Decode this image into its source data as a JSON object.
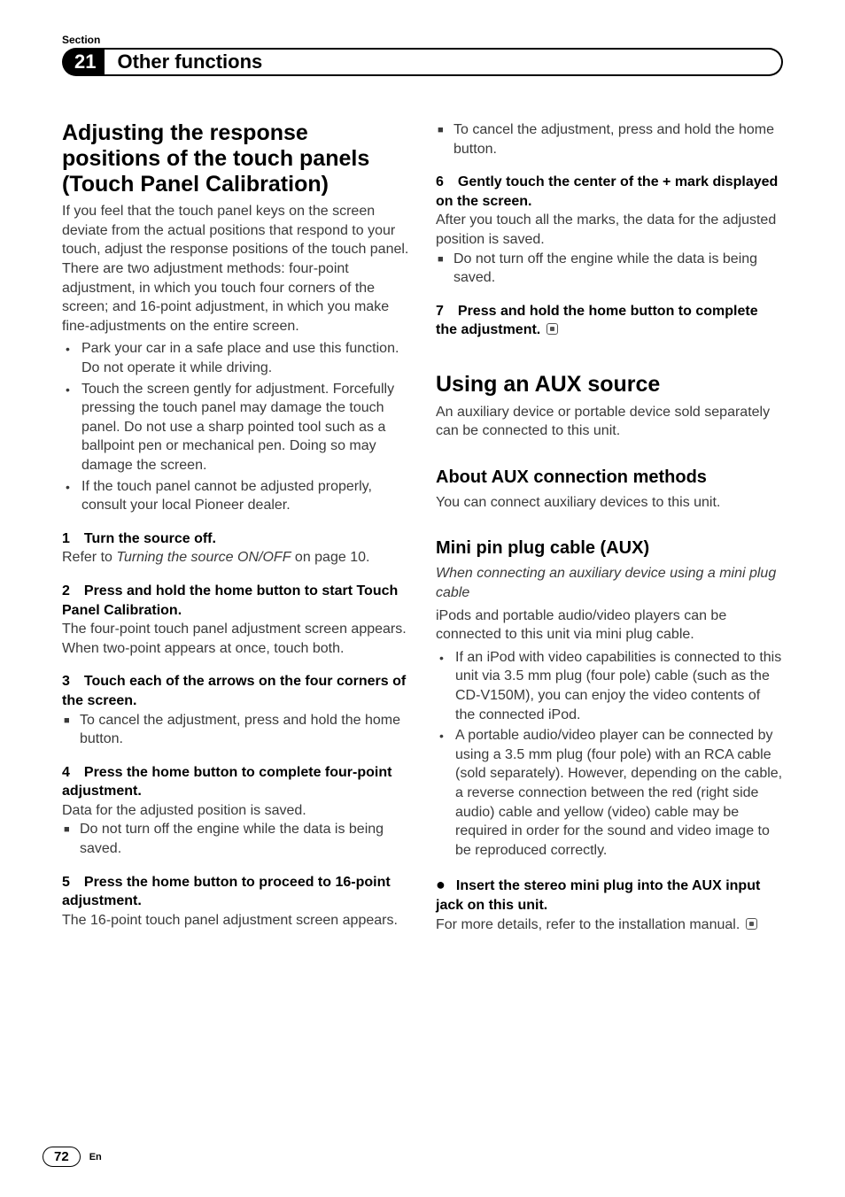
{
  "meta": {
    "section_label": "Section",
    "chapter_number": "21",
    "chapter_title": "Other functions",
    "page_number": "72",
    "lang": "En"
  },
  "left": {
    "h1_l1": "Adjusting the response",
    "h1_l2": "positions of the touch panels",
    "h1_l3": "(Touch Panel Calibration)",
    "intro": "If you feel that the touch panel keys on the screen deviate from the actual positions that respond to your touch, adjust the response positions of the touch panel. There are two adjustment methods: four-point adjustment, in which you touch four corners of the screen; and 16-point adjustment, in which you make fine-adjustments on the entire screen.",
    "b1": "Park your car in a safe place and use this function. Do not operate it while driving.",
    "b2": "Touch the screen gently for adjustment. Forcefully pressing the touch panel may damage the touch panel. Do not use a sharp pointed tool such as a ballpoint pen or mechanical pen. Doing so may damage the screen.",
    "b3": "If the touch panel cannot be adjusted properly, consult your local Pioneer dealer.",
    "s1_head": "1 Turn the source off.",
    "s1_a": "Refer to ",
    "s1_i": "Turning the source ON/OFF",
    "s1_b": " on page 10.",
    "s2_head": "2 Press and hold the home button to start Touch Panel Calibration.",
    "s2_body": "The four-point touch panel adjustment screen appears. When two-point appears at once, touch both.",
    "s3_head": "3 Touch each of the arrows on the four corners of the screen.",
    "s3_note": "To cancel the adjustment, press and hold the home button.",
    "s4_head": "4 Press the home button to complete four-point adjustment.",
    "s4_body": "Data for the adjusted position is saved.",
    "s4_note": "Do not turn off the engine while the data is being saved.",
    "s5_head": "5 Press the home button to proceed to 16-point adjustment.",
    "s5_body": "The 16-point touch panel adjustment screen appears."
  },
  "right": {
    "top_note": "To cancel the adjustment, press and hold the home button.",
    "s6_head": "6 Gently touch the center of the + mark displayed on the screen.",
    "s6_body": "After you touch all the marks, the data for the adjusted position is saved.",
    "s6_note": "Do not turn off the engine while the data is being saved.",
    "s7_head": "7 Press and hold the home button to complete the adjustment.",
    "h2": "Using an AUX source",
    "aux_intro": "An auxiliary device or portable device sold separately can be connected to this unit.",
    "h3a": "About AUX connection methods",
    "h3a_body": "You can connect auxiliary devices to this unit.",
    "h3b": "Mini pin plug cable (AUX)",
    "h3b_i": "When connecting an auxiliary device using a mini plug cable",
    "h3b_body": "iPods and portable audio/video players can be connected to this unit via mini plug cable.",
    "rb1": "If an iPod with video capabilities is connected to this unit via 3.5 mm plug (four pole) cable (such as the CD-V150M), you can enjoy the video contents of the connected iPod.",
    "rb2": "A portable audio/video player can be connected by using a 3.5 mm plug (four pole) with an RCA cable (sold separately). However, depending on the cable, a reverse connection between the red (right side audio) cable and yellow (video) cable may be required in order for the sound and video image to be reproduced correctly.",
    "insert_head": "Insert the stereo mini plug into the AUX input jack on this unit.",
    "insert_body": "For more details, refer to the installation manual."
  }
}
